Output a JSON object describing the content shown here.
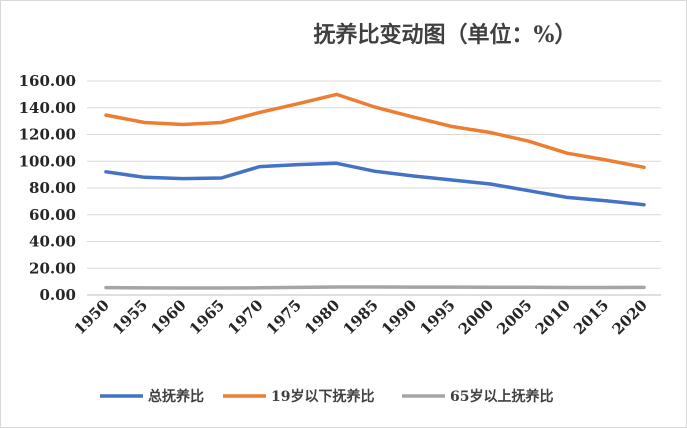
{
  "chart_data": {
    "type": "line",
    "title": "抚养比变动图（单位：%）",
    "xlabel": "",
    "ylabel": "",
    "x": [
      "1950",
      "1955",
      "1960",
      "1965",
      "1970",
      "1975",
      "1980",
      "1985",
      "1990",
      "1995",
      "2000",
      "2005",
      "2010",
      "2015",
      "2020"
    ],
    "ylim": [
      0,
      160
    ],
    "yticks": [
      "0.00",
      "20.00",
      "40.00",
      "60.00",
      "80.00",
      "100.00",
      "120.00",
      "140.00",
      "160.00"
    ],
    "grid": true,
    "legend": "bottom",
    "series": [
      {
        "name": "总抚养比",
        "color": "#4472c4",
        "values": [
          92.1,
          88.0,
          87.0,
          87.5,
          96.0,
          97.5,
          98.5,
          92.5,
          89.0,
          86.0,
          83.0,
          78.0,
          73.0,
          70.5,
          67.5
        ]
      },
      {
        "name": "19岁以下抚养比",
        "color": "#ed7d31",
        "values": [
          134.5,
          129.0,
          127.5,
          129.0,
          136.5,
          143.0,
          150.0,
          140.5,
          133.0,
          126.0,
          121.5,
          115.0,
          106.0,
          101.0,
          95.5
        ]
      },
      {
        "name": "65岁以上抚养比",
        "color": "#a5a5a5",
        "values": [
          5.5,
          5.3,
          5.2,
          5.2,
          5.4,
          5.7,
          6.0,
          6.0,
          5.9,
          5.9,
          5.8,
          5.8,
          5.6,
          5.6,
          5.7
        ]
      }
    ]
  }
}
